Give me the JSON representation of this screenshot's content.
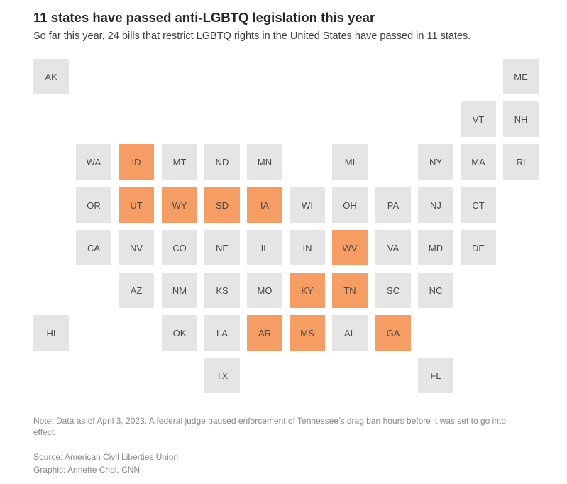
{
  "title": "11 states have passed anti-LGBTQ legislation this year",
  "subtitle": "So far this year, 24 bills that restrict LGBTQ rights in the United States have passed in 11 states.",
  "colors": {
    "passed": "#f59d63",
    "not_passed": "#e5e5e5",
    "label": "#4a4a4a"
  },
  "states": [
    {
      "abbr": "AK",
      "row": 0,
      "col": 0,
      "passed": false
    },
    {
      "abbr": "ME",
      "row": 0,
      "col": 11,
      "passed": false
    },
    {
      "abbr": "VT",
      "row": 1,
      "col": 10,
      "passed": false
    },
    {
      "abbr": "NH",
      "row": 1,
      "col": 11,
      "passed": false
    },
    {
      "abbr": "WA",
      "row": 2,
      "col": 1,
      "passed": false
    },
    {
      "abbr": "ID",
      "row": 2,
      "col": 2,
      "passed": true
    },
    {
      "abbr": "MT",
      "row": 2,
      "col": 3,
      "passed": false
    },
    {
      "abbr": "ND",
      "row": 2,
      "col": 4,
      "passed": false
    },
    {
      "abbr": "MN",
      "row": 2,
      "col": 5,
      "passed": false
    },
    {
      "abbr": "MI",
      "row": 2,
      "col": 7,
      "passed": false
    },
    {
      "abbr": "NY",
      "row": 2,
      "col": 9,
      "passed": false
    },
    {
      "abbr": "MA",
      "row": 2,
      "col": 10,
      "passed": false
    },
    {
      "abbr": "RI",
      "row": 2,
      "col": 11,
      "passed": false
    },
    {
      "abbr": "OR",
      "row": 3,
      "col": 1,
      "passed": false
    },
    {
      "abbr": "UT",
      "row": 3,
      "col": 2,
      "passed": true
    },
    {
      "abbr": "WY",
      "row": 3,
      "col": 3,
      "passed": true
    },
    {
      "abbr": "SD",
      "row": 3,
      "col": 4,
      "passed": true
    },
    {
      "abbr": "IA",
      "row": 3,
      "col": 5,
      "passed": true
    },
    {
      "abbr": "WI",
      "row": 3,
      "col": 6,
      "passed": false
    },
    {
      "abbr": "OH",
      "row": 3,
      "col": 7,
      "passed": false
    },
    {
      "abbr": "PA",
      "row": 3,
      "col": 8,
      "passed": false
    },
    {
      "abbr": "NJ",
      "row": 3,
      "col": 9,
      "passed": false
    },
    {
      "abbr": "CT",
      "row": 3,
      "col": 10,
      "passed": false
    },
    {
      "abbr": "CA",
      "row": 4,
      "col": 1,
      "passed": false
    },
    {
      "abbr": "NV",
      "row": 4,
      "col": 2,
      "passed": false
    },
    {
      "abbr": "CO",
      "row": 4,
      "col": 3,
      "passed": false
    },
    {
      "abbr": "NE",
      "row": 4,
      "col": 4,
      "passed": false
    },
    {
      "abbr": "IL",
      "row": 4,
      "col": 5,
      "passed": false
    },
    {
      "abbr": "IN",
      "row": 4,
      "col": 6,
      "passed": false
    },
    {
      "abbr": "WV",
      "row": 4,
      "col": 7,
      "passed": true
    },
    {
      "abbr": "VA",
      "row": 4,
      "col": 8,
      "passed": false
    },
    {
      "abbr": "MD",
      "row": 4,
      "col": 9,
      "passed": false
    },
    {
      "abbr": "DE",
      "row": 4,
      "col": 10,
      "passed": false
    },
    {
      "abbr": "AZ",
      "row": 5,
      "col": 2,
      "passed": false
    },
    {
      "abbr": "NM",
      "row": 5,
      "col": 3,
      "passed": false
    },
    {
      "abbr": "KS",
      "row": 5,
      "col": 4,
      "passed": false
    },
    {
      "abbr": "MO",
      "row": 5,
      "col": 5,
      "passed": false
    },
    {
      "abbr": "KY",
      "row": 5,
      "col": 6,
      "passed": true
    },
    {
      "abbr": "TN",
      "row": 5,
      "col": 7,
      "passed": true
    },
    {
      "abbr": "SC",
      "row": 5,
      "col": 8,
      "passed": false
    },
    {
      "abbr": "NC",
      "row": 5,
      "col": 9,
      "passed": false
    },
    {
      "abbr": "HI",
      "row": 6,
      "col": 0,
      "passed": false
    },
    {
      "abbr": "OK",
      "row": 6,
      "col": 3,
      "passed": false
    },
    {
      "abbr": "LA",
      "row": 6,
      "col": 4,
      "passed": false
    },
    {
      "abbr": "AR",
      "row": 6,
      "col": 5,
      "passed": true
    },
    {
      "abbr": "MS",
      "row": 6,
      "col": 6,
      "passed": true
    },
    {
      "abbr": "AL",
      "row": 6,
      "col": 7,
      "passed": false
    },
    {
      "abbr": "GA",
      "row": 6,
      "col": 8,
      "passed": true
    },
    {
      "abbr": "TX",
      "row": 7,
      "col": 4,
      "passed": false
    },
    {
      "abbr": "FL",
      "row": 7,
      "col": 9,
      "passed": false
    }
  ],
  "note": "Note: Data as of April 3, 2023. A federal judge paused enforcement of Tennessee’s drag ban hours before it was set to go into effect.",
  "source": "Source: American Civil Liberties Union",
  "credit": "Graphic: Annette Choi, CNN"
}
